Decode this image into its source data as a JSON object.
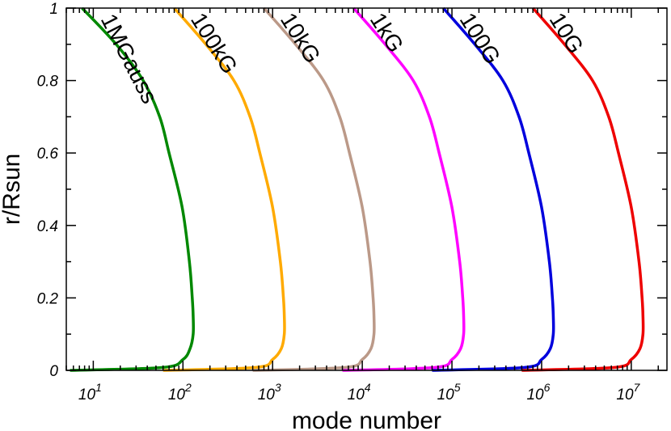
{
  "chart_data": {
    "type": "line",
    "xlabel": "mode number",
    "ylabel": "r/Rsun",
    "x_scale": "log",
    "xlim": [
      5,
      25000000
    ],
    "ylim": [
      0,
      1
    ],
    "x_ticks": [
      {
        "value": 10,
        "base": "10",
        "exp": "1"
      },
      {
        "value": 100,
        "base": "10",
        "exp": "2"
      },
      {
        "value": 1000,
        "base": "10",
        "exp": "3"
      },
      {
        "value": 10000,
        "base": "10",
        "exp": "4"
      },
      {
        "value": 100000,
        "base": "10",
        "exp": "5"
      },
      {
        "value": 1000000,
        "base": "10",
        "exp": "6"
      },
      {
        "value": 10000000,
        "base": "10",
        "exp": "7"
      }
    ],
    "y_ticks": [
      {
        "value": 0,
        "label": "0"
      },
      {
        "value": 0.2,
        "label": "0.2"
      },
      {
        "value": 0.4,
        "label": "0.4"
      },
      {
        "value": 0.6,
        "label": "0.6"
      },
      {
        "value": 0.8,
        "label": "0.8"
      },
      {
        "value": 1,
        "label": "1"
      }
    ],
    "grid": false,
    "series": [
      {
        "name": "1MGauss",
        "color": "#008800",
        "points": [
          [
            5.5,
            0
          ],
          [
            60,
            0.008
          ],
          [
            100,
            0.03
          ],
          [
            120,
            0.06
          ],
          [
            130,
            0.1
          ],
          [
            130,
            0.15
          ],
          [
            127,
            0.2
          ],
          [
            118,
            0.3
          ],
          [
            98,
            0.45
          ],
          [
            70,
            0.6
          ],
          [
            55,
            0.7
          ],
          [
            36,
            0.8
          ],
          [
            18,
            0.9
          ],
          [
            7.5,
            1
          ]
        ]
      },
      {
        "name": "100kG",
        "color": "#ffaa00",
        "points": [
          [
            60,
            0
          ],
          [
            650,
            0.008
          ],
          [
            1000,
            0.03
          ],
          [
            1250,
            0.06
          ],
          [
            1350,
            0.1
          ],
          [
            1350,
            0.15
          ],
          [
            1320,
            0.2
          ],
          [
            1220,
            0.3
          ],
          [
            1000,
            0.45
          ],
          [
            720,
            0.6
          ],
          [
            560,
            0.7
          ],
          [
            370,
            0.8
          ],
          [
            180,
            0.9
          ],
          [
            80,
            1
          ]
        ]
      },
      {
        "name": "10kG",
        "color": "#bb9988",
        "points": [
          [
            600,
            0
          ],
          [
            6500,
            0.008
          ],
          [
            10000,
            0.03
          ],
          [
            12500,
            0.06
          ],
          [
            13500,
            0.1
          ],
          [
            13500,
            0.15
          ],
          [
            13200,
            0.2
          ],
          [
            12200,
            0.3
          ],
          [
            10000,
            0.45
          ],
          [
            7200,
            0.6
          ],
          [
            5600,
            0.7
          ],
          [
            3700,
            0.8
          ],
          [
            1800,
            0.9
          ],
          [
            800,
            1
          ]
        ]
      },
      {
        "name": "1kG",
        "color": "#ff00ff",
        "points": [
          [
            6000,
            0
          ],
          [
            65000,
            0.008
          ],
          [
            100000,
            0.03
          ],
          [
            125000,
            0.06
          ],
          [
            135000,
            0.1
          ],
          [
            135000,
            0.15
          ],
          [
            132000,
            0.2
          ],
          [
            122000,
            0.3
          ],
          [
            100000,
            0.45
          ],
          [
            72000,
            0.6
          ],
          [
            56000,
            0.7
          ],
          [
            37000,
            0.8
          ],
          [
            18000,
            0.9
          ],
          [
            8000,
            1
          ]
        ]
      },
      {
        "name": "100G",
        "color": "#0000dd",
        "points": [
          [
            60000,
            0
          ],
          [
            650000,
            0.008
          ],
          [
            1000000,
            0.03
          ],
          [
            1250000,
            0.06
          ],
          [
            1350000,
            0.1
          ],
          [
            1350000,
            0.15
          ],
          [
            1320000,
            0.2
          ],
          [
            1220000,
            0.3
          ],
          [
            1000000,
            0.45
          ],
          [
            720000,
            0.6
          ],
          [
            560000,
            0.7
          ],
          [
            370000,
            0.8
          ],
          [
            180000,
            0.9
          ],
          [
            80000,
            1
          ]
        ]
      },
      {
        "name": "10G",
        "color": "#ee0000",
        "points": [
          [
            600000,
            0
          ],
          [
            6500000,
            0.008
          ],
          [
            10000000,
            0.03
          ],
          [
            12500000,
            0.06
          ],
          [
            13500000,
            0.1
          ],
          [
            13500000,
            0.15
          ],
          [
            13200000,
            0.2
          ],
          [
            12200000,
            0.3
          ],
          [
            10000000,
            0.45
          ],
          [
            7200000,
            0.6
          ],
          [
            5600000,
            0.7
          ],
          [
            3700000,
            0.8
          ],
          [
            1800000,
            0.9
          ],
          [
            800000,
            1
          ]
        ]
      }
    ]
  }
}
